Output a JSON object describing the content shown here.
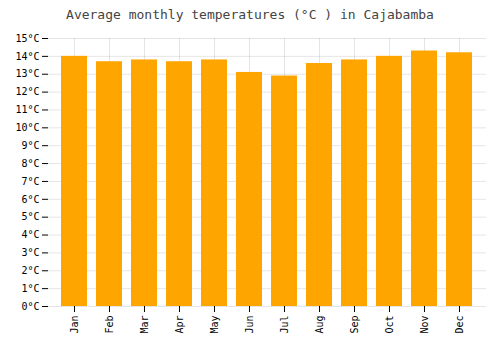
{
  "chart_data": {
    "type": "bar",
    "title": "Average monthly temperatures (°C ) in Cajabamba",
    "categories": [
      "Jan",
      "Feb",
      "Mar",
      "Apr",
      "May",
      "Jun",
      "Jul",
      "Aug",
      "Sep",
      "Oct",
      "Nov",
      "Dec"
    ],
    "values": [
      14.0,
      13.7,
      13.8,
      13.7,
      13.8,
      13.1,
      12.9,
      13.6,
      13.8,
      14.0,
      14.3,
      14.2
    ],
    "color": "#FFA500",
    "ylim": [
      0,
      15
    ],
    "yticks": [
      {
        "value": 0,
        "label": "0°C"
      },
      {
        "value": 1,
        "label": "1°C"
      },
      {
        "value": 2,
        "label": "2°C"
      },
      {
        "value": 3,
        "label": "3°C"
      },
      {
        "value": 4,
        "label": "4°C"
      },
      {
        "value": 5,
        "label": "5°C"
      },
      {
        "value": 6,
        "label": "6°C"
      },
      {
        "value": 7,
        "label": "7°C"
      },
      {
        "value": 8,
        "label": "8°C"
      },
      {
        "value": 9,
        "label": "9°C"
      },
      {
        "value": 10,
        "label": "10°C"
      },
      {
        "value": 11,
        "label": "11°C"
      },
      {
        "value": 12,
        "label": "12°C"
      },
      {
        "value": 13,
        "label": "13°C"
      },
      {
        "value": 14,
        "label": "14°C"
      },
      {
        "value": 15,
        "label": "15°C"
      }
    ],
    "grid": true
  }
}
